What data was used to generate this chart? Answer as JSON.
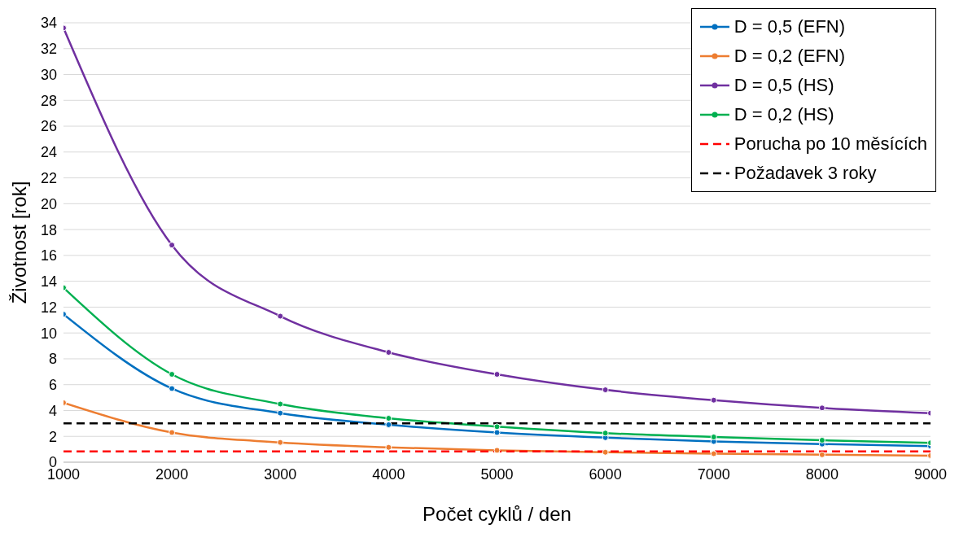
{
  "chart_data": {
    "type": "line",
    "xlabel": "Počet cyklů / den",
    "ylabel": "Životnost [rok]",
    "x": [
      1000,
      2000,
      3000,
      4000,
      5000,
      6000,
      7000,
      8000,
      9000
    ],
    "xlim": [
      1000,
      9000
    ],
    "xticks": [
      1000,
      2000,
      3000,
      4000,
      5000,
      6000,
      7000,
      8000,
      9000
    ],
    "ylim": [
      0,
      34
    ],
    "yticks": [
      0,
      2,
      4,
      6,
      8,
      10,
      12,
      14,
      16,
      18,
      20,
      22,
      24,
      26,
      28,
      30,
      32,
      34
    ],
    "grid": "y",
    "legend": "top right",
    "marker": "circle",
    "line_style": "solid",
    "series": [
      {
        "name": "D = 0,5 (EFN)",
        "color": "#0070c0",
        "values": [
          11.45,
          5.7,
          3.8,
          2.9,
          2.3,
          1.9,
          1.6,
          1.4,
          1.25
        ]
      },
      {
        "name": "D = 0,2 (EFN)",
        "color": "#ed7d31",
        "values": [
          4.6,
          2.3,
          1.53,
          1.15,
          0.92,
          0.77,
          0.66,
          0.58,
          0.51
        ]
      },
      {
        "name": "D = 0,5 (HS)",
        "color": "#7030a0",
        "values": [
          33.6,
          16.8,
          11.3,
          8.5,
          6.8,
          5.6,
          4.8,
          4.2,
          3.8
        ]
      },
      {
        "name": "D = 0,2 (HS)",
        "color": "#00b050",
        "values": [
          13.5,
          6.8,
          4.5,
          3.4,
          2.75,
          2.25,
          1.95,
          1.7,
          1.5
        ]
      },
      {
        "name": "Porucha po 10 měsících",
        "color": "#ff0000",
        "line_style": "dashed",
        "marker": "none",
        "values": [
          0.83,
          0.83,
          0.83,
          0.83,
          0.83,
          0.83,
          0.83,
          0.83,
          0.83
        ]
      },
      {
        "name": "Požadavek 3 roky",
        "color": "#000000",
        "line_style": "dashed",
        "marker": "none",
        "values": [
          3,
          3,
          3,
          3,
          3,
          3,
          3,
          3,
          3
        ]
      }
    ]
  }
}
